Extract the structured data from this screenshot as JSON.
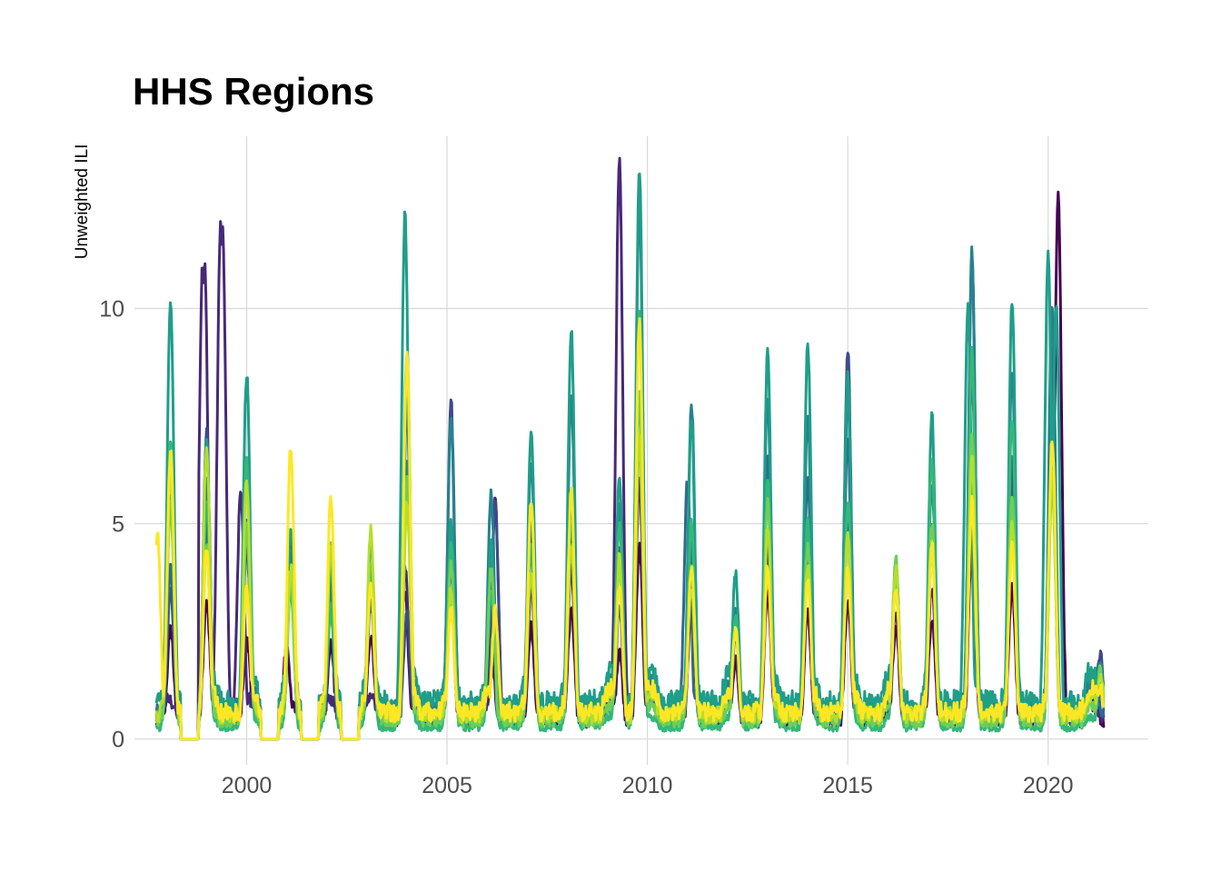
{
  "chart_data": {
    "type": "line",
    "title": "HHS Regions",
    "xlabel": "",
    "ylabel": "Unweighted ILI",
    "xlim": [
      1997.2,
      2022.5
    ],
    "ylim": [
      -0.6,
      14.0
    ],
    "x_ticks": [
      2000,
      2005,
      2010,
      2015,
      2020
    ],
    "x_tick_labels": [
      "2000",
      "2005",
      "2010",
      "2015",
      "2020"
    ],
    "y_ticks": [
      0,
      5,
      10
    ],
    "y_tick_labels": [
      "0",
      "5",
      "10"
    ],
    "grid": true,
    "legend": "none",
    "x_start": 1997.75,
    "x_end": 2021.4,
    "colors": [
      "#440154",
      "#482878",
      "#3e4a89",
      "#31688e",
      "#26828e",
      "#1f9e89",
      "#35b779",
      "#6ece58",
      "#b5de2b",
      "#fde725"
    ],
    "series": [
      {
        "color": "#440154",
        "baseline": 0.6,
        "peaks": [
          [
            1998.1,
            2.5
          ],
          [
            1999.0,
            3.2
          ],
          [
            2000.0,
            2.4
          ],
          [
            2001.0,
            2.2
          ],
          [
            2002.1,
            2.2
          ],
          [
            2003.1,
            2.4
          ],
          [
            2003.95,
            3.5
          ],
          [
            2005.1,
            3.2
          ],
          [
            2006.1,
            2.2
          ],
          [
            2007.1,
            2.6
          ],
          [
            2008.1,
            3.0
          ],
          [
            2009.3,
            2.0
          ],
          [
            2009.8,
            4.5
          ],
          [
            2011.1,
            3.0
          ],
          [
            2012.2,
            1.8
          ],
          [
            2013.0,
            3.5
          ],
          [
            2014.0,
            3.0
          ],
          [
            2015.0,
            3.2
          ],
          [
            2016.2,
            2.6
          ],
          [
            2017.1,
            2.8
          ],
          [
            2018.1,
            4.5
          ],
          [
            2019.1,
            3.5
          ],
          [
            2020.1,
            7.5
          ],
          [
            2020.25,
            12.6
          ],
          [
            2021.0,
            1.5
          ]
        ]
      },
      {
        "color": "#482878",
        "baseline": 0.7,
        "peaks": [
          [
            1998.9,
            11.0
          ],
          [
            1998.95,
            11.0
          ],
          [
            1999.35,
            12.0
          ],
          [
            1999.4,
            11.8
          ],
          [
            1999.85,
            5.7
          ],
          [
            2001.1,
            4.0
          ],
          [
            2003.95,
            4.0
          ],
          [
            2005.1,
            4.5
          ],
          [
            2006.2,
            5.5
          ],
          [
            2007.1,
            3.5
          ],
          [
            2008.1,
            4.0
          ],
          [
            2009.3,
            13.5
          ],
          [
            2009.8,
            6.0
          ],
          [
            2011.1,
            4.0
          ],
          [
            2012.2,
            2.0
          ],
          [
            2013.0,
            4.0
          ],
          [
            2014.0,
            4.2
          ],
          [
            2015.0,
            5.0
          ],
          [
            2016.2,
            3.0
          ],
          [
            2017.1,
            3.5
          ],
          [
            2018.1,
            6.0
          ],
          [
            2019.1,
            5.0
          ],
          [
            2020.1,
            6.5
          ],
          [
            2021.0,
            1.4
          ]
        ]
      },
      {
        "color": "#3e4a89",
        "baseline": 0.9,
        "peaks": [
          [
            1998.1,
            3.5
          ],
          [
            1999.0,
            7.1
          ],
          [
            2000.0,
            4.5
          ],
          [
            2001.1,
            4.8
          ],
          [
            2002.1,
            3.8
          ],
          [
            2003.1,
            3.5
          ],
          [
            2004.0,
            3.0
          ],
          [
            2005.1,
            7.8
          ],
          [
            2006.2,
            5.5
          ],
          [
            2007.1,
            4.5
          ],
          [
            2008.1,
            4.8
          ],
          [
            2009.3,
            4.5
          ],
          [
            2009.8,
            7.0
          ],
          [
            2011.1,
            4.5
          ],
          [
            2012.2,
            2.5
          ],
          [
            2013.0,
            4.5
          ],
          [
            2014.0,
            4.8
          ],
          [
            2015.0,
            9.0
          ],
          [
            2016.2,
            3.8
          ],
          [
            2017.1,
            4.5
          ],
          [
            2018.1,
            11.2
          ],
          [
            2019.1,
            6.0
          ],
          [
            2020.1,
            8.5
          ],
          [
            2021.3,
            2.0
          ]
        ]
      },
      {
        "color": "#31688e",
        "baseline": 0.8,
        "peaks": [
          [
            1998.1,
            4.0
          ],
          [
            1999.0,
            5.0
          ],
          [
            2000.0,
            4.8
          ],
          [
            2001.1,
            4.0
          ],
          [
            2002.1,
            3.0
          ],
          [
            2003.1,
            3.2
          ],
          [
            2004.0,
            7.8
          ],
          [
            2005.1,
            4.0
          ],
          [
            2006.1,
            4.0
          ],
          [
            2007.1,
            5.0
          ],
          [
            2008.1,
            5.5
          ],
          [
            2009.3,
            3.0
          ],
          [
            2009.8,
            8.0
          ],
          [
            2011.0,
            6.0
          ],
          [
            2012.2,
            2.5
          ],
          [
            2013.0,
            6.5
          ],
          [
            2014.0,
            6.0
          ],
          [
            2015.0,
            7.0
          ],
          [
            2016.2,
            3.5
          ],
          [
            2017.1,
            5.0
          ],
          [
            2018.1,
            8.5
          ],
          [
            2019.1,
            6.5
          ],
          [
            2020.1,
            9.0
          ],
          [
            2021.2,
            1.5
          ]
        ]
      },
      {
        "color": "#26828e",
        "baseline": 1.0,
        "peaks": [
          [
            1998.1,
            6.0
          ],
          [
            1999.0,
            6.0
          ],
          [
            2000.0,
            5.0
          ],
          [
            2001.1,
            4.5
          ],
          [
            2002.1,
            3.5
          ],
          [
            2003.1,
            3.8
          ],
          [
            2004.0,
            6.5
          ],
          [
            2005.1,
            7.5
          ],
          [
            2006.1,
            5.7
          ],
          [
            2007.1,
            6.5
          ],
          [
            2008.1,
            8.0
          ],
          [
            2009.3,
            5.5
          ],
          [
            2009.8,
            12.5
          ],
          [
            2011.1,
            7.8
          ],
          [
            2012.2,
            3.0
          ],
          [
            2013.0,
            8.0
          ],
          [
            2014.0,
            7.5
          ],
          [
            2015.0,
            8.0
          ],
          [
            2016.2,
            4.2
          ],
          [
            2017.1,
            6.0
          ],
          [
            2018.1,
            11.3
          ],
          [
            2019.1,
            8.5
          ],
          [
            2020.1,
            10.0
          ],
          [
            2021.3,
            1.8
          ]
        ]
      },
      {
        "color": "#1f9e89",
        "baseline": 1.2,
        "peaks": [
          [
            1998.1,
            10.2
          ],
          [
            1999.0,
            7.0
          ],
          [
            2000.0,
            8.5
          ],
          [
            2001.1,
            5.0
          ],
          [
            2002.1,
            4.0
          ],
          [
            2003.1,
            4.5
          ],
          [
            2003.95,
            12.2
          ],
          [
            2005.1,
            5.0
          ],
          [
            2006.1,
            4.5
          ],
          [
            2007.1,
            7.2
          ],
          [
            2008.1,
            9.5
          ],
          [
            2009.3,
            6.0
          ],
          [
            2009.8,
            13.2
          ],
          [
            2011.1,
            7.5
          ],
          [
            2012.2,
            3.8
          ],
          [
            2013.0,
            9.0
          ],
          [
            2014.0,
            9.2
          ],
          [
            2015.0,
            8.5
          ],
          [
            2016.2,
            4.0
          ],
          [
            2017.1,
            7.5
          ],
          [
            2018.0,
            10.0
          ],
          [
            2019.1,
            10.2
          ],
          [
            2020.0,
            11.2
          ],
          [
            2020.2,
            10.0
          ],
          [
            2021.3,
            1.6
          ]
        ]
      },
      {
        "color": "#35b779",
        "baseline": 0.4,
        "peaks": [
          [
            1998.1,
            7.0
          ],
          [
            1999.0,
            5.5
          ],
          [
            2000.0,
            6.5
          ],
          [
            2001.1,
            3.5
          ],
          [
            2002.1,
            3.0
          ],
          [
            2003.1,
            4.0
          ],
          [
            2004.0,
            9.0
          ],
          [
            2005.1,
            4.5
          ],
          [
            2006.1,
            3.5
          ],
          [
            2007.1,
            4.5
          ],
          [
            2008.1,
            5.0
          ],
          [
            2009.3,
            5.0
          ],
          [
            2009.8,
            10.0
          ],
          [
            2011.1,
            5.0
          ],
          [
            2012.2,
            2.8
          ],
          [
            2013.0,
            6.0
          ],
          [
            2014.0,
            5.0
          ],
          [
            2015.0,
            5.5
          ],
          [
            2016.2,
            3.8
          ],
          [
            2017.1,
            6.5
          ],
          [
            2018.1,
            9.0
          ],
          [
            2019.1,
            7.5
          ],
          [
            2020.1,
            7.0
          ],
          [
            2021.3,
            1.4
          ]
        ]
      },
      {
        "color": "#6ece58",
        "baseline": 0.6,
        "peaks": [
          [
            1998.1,
            5.5
          ],
          [
            1999.0,
            4.5
          ],
          [
            2000.0,
            5.0
          ],
          [
            2001.1,
            3.8
          ],
          [
            2002.1,
            4.5
          ],
          [
            2003.1,
            4.2
          ],
          [
            2004.0,
            6.0
          ],
          [
            2005.1,
            4.0
          ],
          [
            2006.1,
            4.0
          ],
          [
            2007.1,
            5.5
          ],
          [
            2008.1,
            4.5
          ],
          [
            2009.3,
            4.0
          ],
          [
            2009.8,
            8.0
          ],
          [
            2011.1,
            4.0
          ],
          [
            2012.2,
            2.5
          ],
          [
            2013.0,
            5.5
          ],
          [
            2014.0,
            4.5
          ],
          [
            2015.0,
            4.8
          ],
          [
            2016.2,
            4.2
          ],
          [
            2017.1,
            5.0
          ],
          [
            2018.1,
            7.0
          ],
          [
            2019.1,
            5.5
          ],
          [
            2020.1,
            6.0
          ],
          [
            2021.3,
            1.6
          ]
        ]
      },
      {
        "color": "#b5de2b",
        "baseline": 0.8,
        "peaks": [
          [
            1998.1,
            6.2
          ],
          [
            1999.0,
            6.8
          ],
          [
            2000.0,
            6.0
          ],
          [
            2001.1,
            4.0
          ],
          [
            2002.1,
            4.5
          ],
          [
            2003.1,
            4.9
          ],
          [
            2004.0,
            5.5
          ],
          [
            2005.1,
            3.5
          ],
          [
            2006.2,
            3.0
          ],
          [
            2007.1,
            4.0
          ],
          [
            2008.1,
            4.5
          ],
          [
            2009.3,
            4.2
          ],
          [
            2009.8,
            7.0
          ],
          [
            2011.1,
            3.5
          ],
          [
            2012.2,
            2.5
          ],
          [
            2013.0,
            5.0
          ],
          [
            2014.0,
            4.0
          ],
          [
            2015.0,
            4.8
          ],
          [
            2016.2,
            4.0
          ],
          [
            2017.1,
            4.5
          ],
          [
            2018.1,
            6.5
          ],
          [
            2019.1,
            5.0
          ],
          [
            2020.1,
            6.2
          ],
          [
            2021.3,
            1.5
          ]
        ]
      },
      {
        "color": "#fde725",
        "baseline": 0.9,
        "peaks": [
          [
            1997.77,
            4.8
          ],
          [
            1998.1,
            6.7
          ],
          [
            1999.0,
            4.5
          ],
          [
            2000.0,
            3.5
          ],
          [
            2001.1,
            6.8
          ],
          [
            2002.1,
            5.6
          ],
          [
            2003.1,
            3.5
          ],
          [
            2004.0,
            8.9
          ],
          [
            2005.1,
            3.0
          ],
          [
            2006.2,
            3.0
          ],
          [
            2007.1,
            5.5
          ],
          [
            2008.1,
            5.8
          ],
          [
            2009.3,
            3.5
          ],
          [
            2009.8,
            9.7
          ],
          [
            2011.1,
            4.0
          ],
          [
            2012.2,
            2.5
          ],
          [
            2013.0,
            4.0
          ],
          [
            2014.0,
            3.8
          ],
          [
            2015.0,
            4.0
          ],
          [
            2016.2,
            3.5
          ],
          [
            2017.1,
            4.5
          ],
          [
            2018.1,
            5.5
          ],
          [
            2019.1,
            4.5
          ],
          [
            2020.1,
            7.0
          ],
          [
            2021.3,
            1.2
          ]
        ]
      }
    ],
    "zero_periods": [
      [
        1998.35,
        1998.8
      ],
      [
        2000.35,
        2000.8
      ],
      [
        2001.35,
        2001.8
      ],
      [
        2002.35,
        2002.8
      ]
    ]
  }
}
